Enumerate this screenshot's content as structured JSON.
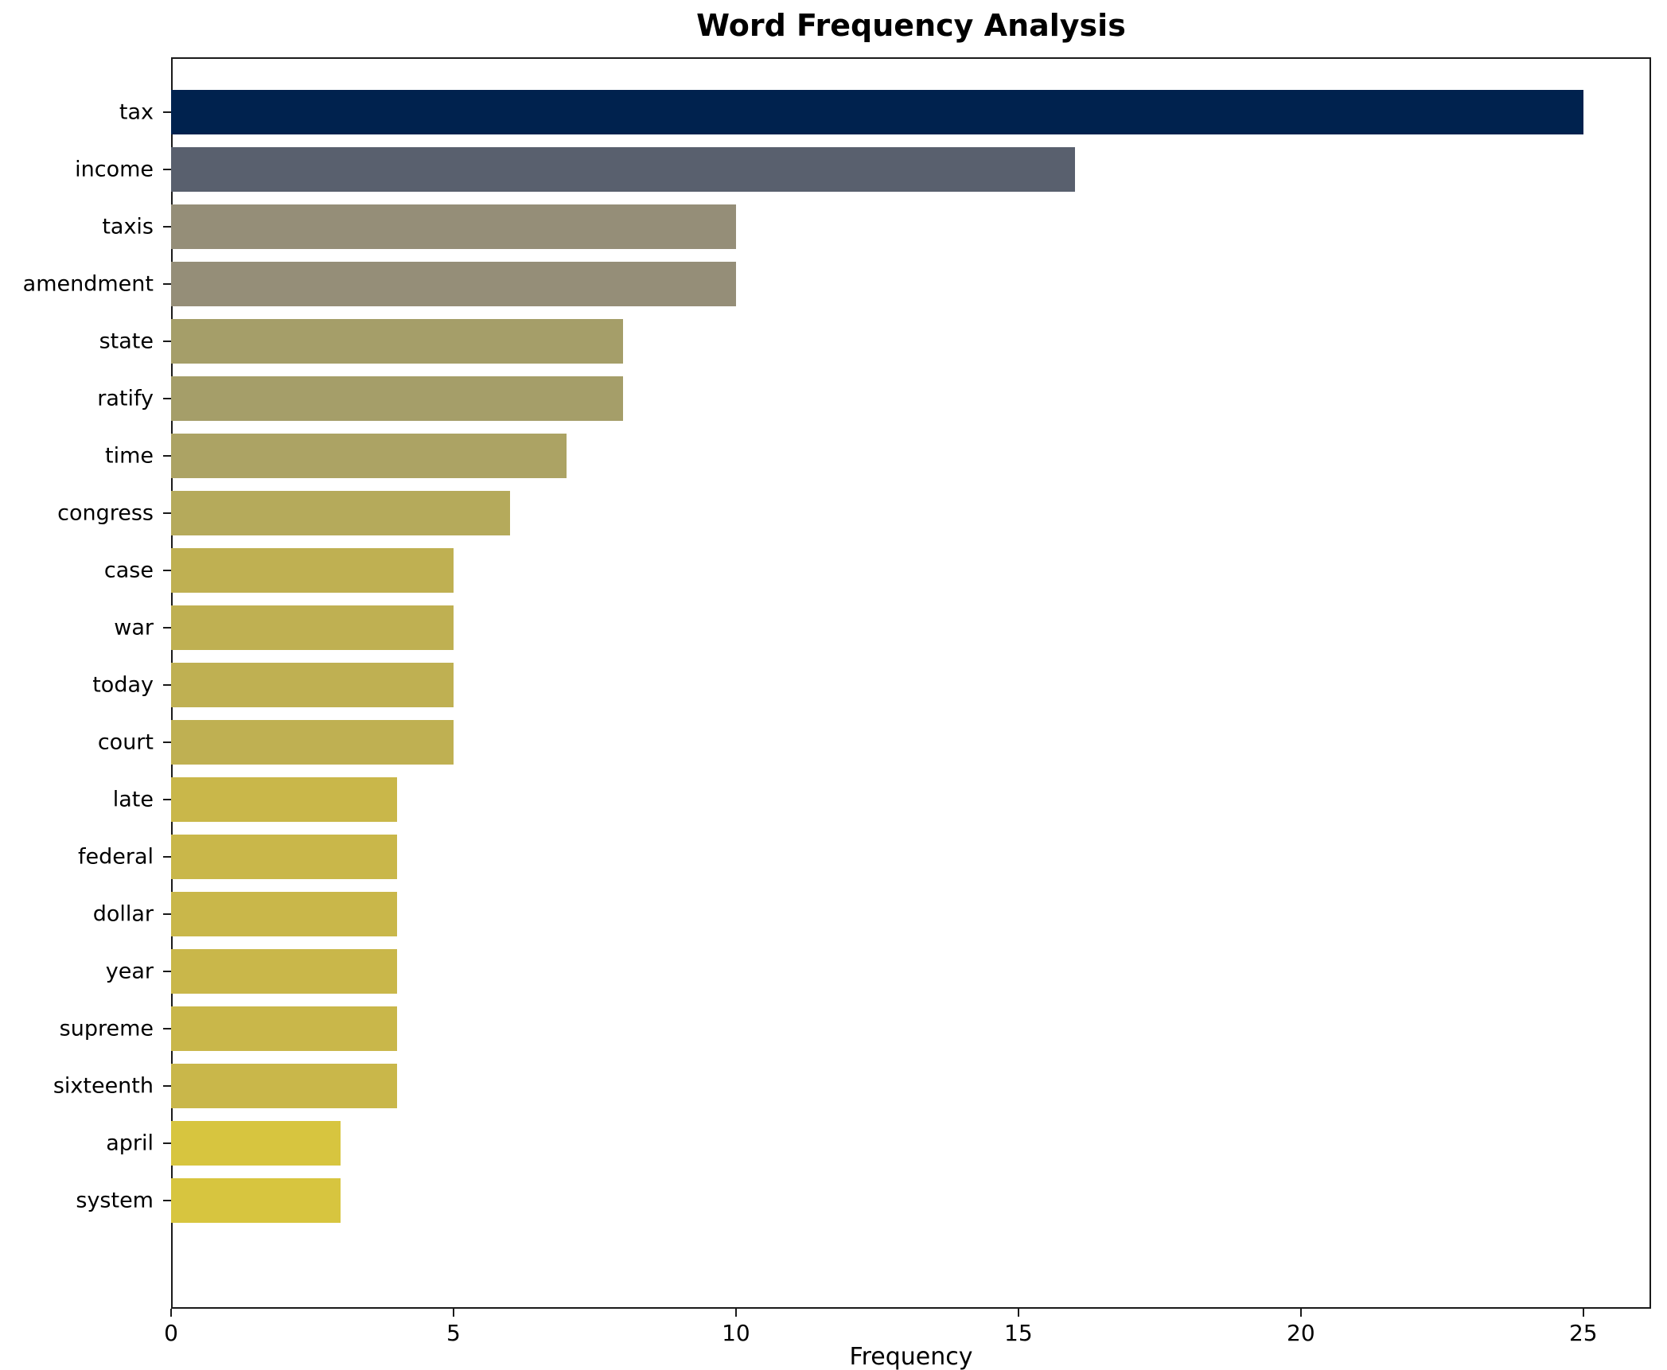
{
  "title": "Word Frequency Analysis",
  "x_axis_label": "Frequency",
  "chart_data": {
    "type": "bar",
    "orientation": "horizontal",
    "title": "Word Frequency Analysis",
    "xlabel": "Frequency",
    "ylabel": "",
    "grid": false,
    "legend": "none",
    "xlim": [
      0,
      26.2
    ],
    "xticks": [
      0,
      5,
      10,
      15,
      20,
      25
    ],
    "categories": [
      "tax",
      "income",
      "taxis",
      "amendment",
      "state",
      "ratify",
      "time",
      "congress",
      "case",
      "war",
      "today",
      "court",
      "late",
      "federal",
      "dollar",
      "year",
      "supreme",
      "sixteenth",
      "april",
      "system"
    ],
    "values": [
      25,
      16,
      10,
      10,
      8,
      8,
      7,
      6,
      5,
      5,
      5,
      5,
      4,
      4,
      4,
      4,
      4,
      4,
      3,
      3
    ],
    "bar_colors": [
      "#00224e",
      "#59606e",
      "#958e78",
      "#958e78",
      "#a59e69",
      "#a59e69",
      "#aca364",
      "#b5aa5b",
      "#bfb052",
      "#bfb052",
      "#bfb052",
      "#bfb052",
      "#c9b74a",
      "#c9b74a",
      "#c9b74a",
      "#c9b74a",
      "#c9b74a",
      "#c9b74a",
      "#d7c53f",
      "#d7c53f"
    ],
    "axis_color": "#1a1a1a",
    "background_color": "#ffffff"
  }
}
